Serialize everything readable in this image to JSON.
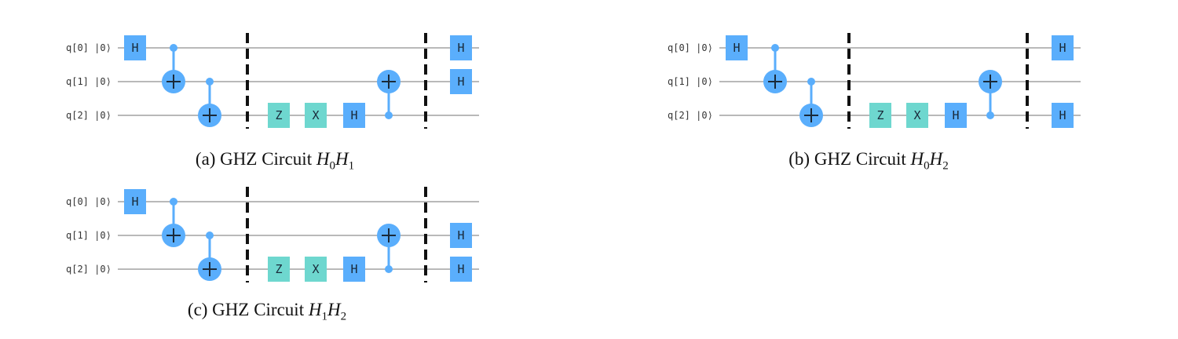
{
  "panels": [
    {
      "caption_prefix": "(a) GHZ Circuit ",
      "caption_math": [
        {
          "base": "H",
          "sub": "0"
        },
        {
          "base": "H",
          "sub": "1"
        }
      ],
      "qubits": [
        {
          "label": "q[0]",
          "ket": "|0⟩"
        },
        {
          "label": "q[1]",
          "ket": "|0⟩"
        },
        {
          "label": "q[2]",
          "ket": "|0⟩"
        }
      ],
      "final_h_qubits": [
        0,
        1
      ]
    },
    {
      "caption_prefix": "(b) GHZ Circuit ",
      "caption_math": [
        {
          "base": "H",
          "sub": "0"
        },
        {
          "base": "H",
          "sub": "2"
        }
      ],
      "qubits": [
        {
          "label": "q[0]",
          "ket": "|0⟩"
        },
        {
          "label": "q[1]",
          "ket": "|0⟩"
        },
        {
          "label": "q[2]",
          "ket": "|0⟩"
        }
      ],
      "final_h_qubits": [
        0,
        2
      ]
    },
    {
      "caption_prefix": "(c) GHZ Circuit ",
      "caption_math": [
        {
          "base": "H",
          "sub": "1"
        },
        {
          "base": "H",
          "sub": "2"
        }
      ],
      "qubits": [
        {
          "label": "q[0]",
          "ket": "|0⟩"
        },
        {
          "label": "q[1]",
          "ket": "|0⟩"
        },
        {
          "label": "q[2]",
          "ket": "|0⟩"
        }
      ],
      "final_h_qubits": [
        1,
        2
      ]
    }
  ],
  "gates": {
    "h": "H",
    "z": "Z",
    "x": "X"
  },
  "colors": {
    "wire": "#b9b9b9",
    "h_gate": "#5aaefc",
    "pauli_gate": "#6ed7cf",
    "cnot": "#5aaefc",
    "barrier": "#111111"
  }
}
